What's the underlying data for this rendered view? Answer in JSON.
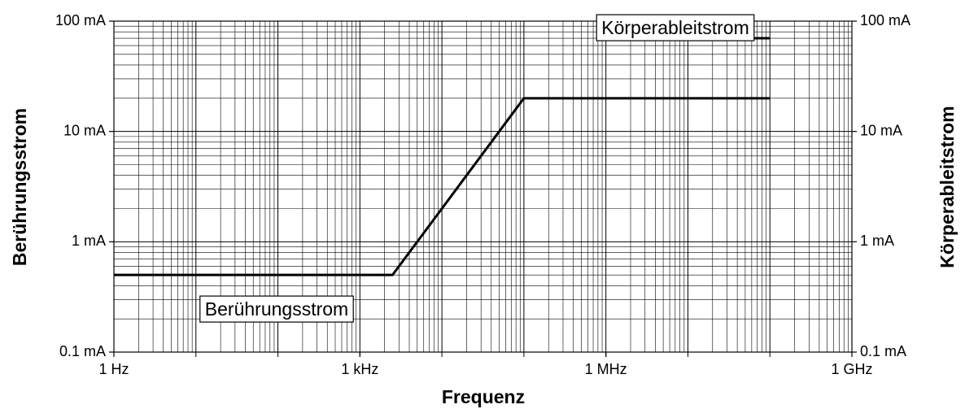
{
  "chart_data": {
    "type": "line",
    "x_label": "Frequenz",
    "y_label": "Berührungsstrom",
    "y2_label": "Körperableitstrom",
    "xscale": "log",
    "yscale": "log",
    "grid": "minor",
    "xlim": [
      1,
      1000000000
    ],
    "xticks": [
      {
        "value": 1,
        "label": "1 Hz"
      },
      {
        "value": 1000,
        "label": "1 kHz"
      },
      {
        "value": 1000000,
        "label": "1 MHz"
      },
      {
        "value": 1000000000,
        "label": "1 GHz"
      }
    ],
    "ylim": [
      0.1,
      100
    ],
    "yticks": [
      {
        "value": 0.1,
        "label": "0.1 mA"
      },
      {
        "value": 1,
        "label": "1 mA"
      },
      {
        "value": 10,
        "label": "10 mA"
      },
      {
        "value": 100,
        "label": "100 mA"
      }
    ],
    "y2lim": [
      0.1,
      100
    ],
    "y2ticks": [
      {
        "value": 0.1,
        "label": "0.1 mA"
      },
      {
        "value": 1,
        "label": "1 mA"
      },
      {
        "value": 10,
        "label": "10 mA"
      },
      {
        "value": 100,
        "label": "100 mA"
      }
    ],
    "series": [
      {
        "name": "Berührungsstrom",
        "color": "#000000",
        "x": [
          1,
          2500,
          100000,
          100000000
        ],
        "values": [
          0.5,
          0.5,
          20,
          20
        ]
      },
      {
        "name": "Körperableitstrom",
        "color": "#000000",
        "axis": "y2",
        "x": [
          10000000,
          100000000
        ],
        "values": [
          70,
          70
        ]
      }
    ]
  }
}
